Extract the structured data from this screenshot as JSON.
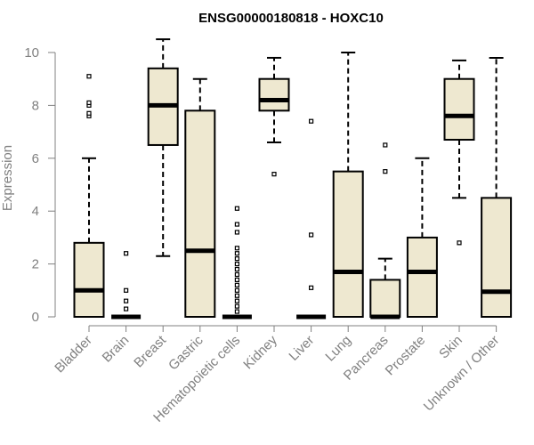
{
  "chart_data": {
    "type": "boxplot",
    "title": "ENSG00000180818 - HOXC10",
    "xlabel": "",
    "ylabel": "Expression",
    "ylim": [
      0,
      10.5
    ],
    "yticks": [
      0,
      2,
      4,
      6,
      8,
      10
    ],
    "grid": false,
    "legend": "none",
    "colors": {
      "box_fill": "#EEE8D0",
      "box_stroke": "#000000",
      "axis": "#808080"
    },
    "categories": [
      "Bladder",
      "Brain",
      "Breast",
      "Gastric",
      "Hematopoietic cells",
      "Kidney",
      "Liver",
      "Lung",
      "Pancreas",
      "Prostate",
      "Skin",
      "Unknown / Other"
    ],
    "boxes": [
      {
        "category": "Bladder",
        "whisker_low": 0,
        "q1": 0,
        "median": 1.0,
        "q3": 2.8,
        "whisker_high": 6.0,
        "outliers": [
          7.6,
          7.7,
          8.0,
          8.1,
          9.1
        ]
      },
      {
        "category": "Brain",
        "whisker_low": 0,
        "q1": 0,
        "median": 0,
        "q3": 0,
        "whisker_high": 0,
        "outliers": [
          0.3,
          0.6,
          1.0,
          2.4
        ]
      },
      {
        "category": "Breast",
        "whisker_low": 2.3,
        "q1": 6.5,
        "median": 8.0,
        "q3": 9.4,
        "whisker_high": 10.5,
        "outliers": []
      },
      {
        "category": "Gastric",
        "whisker_low": 0,
        "q1": 0,
        "median": 2.5,
        "q3": 7.8,
        "whisker_high": 9.0,
        "outliers": []
      },
      {
        "category": "Hematopoietic cells",
        "whisker_low": 0,
        "q1": 0,
        "median": 0,
        "q3": 0,
        "whisker_high": 0,
        "outliers": [
          0.2,
          0.4,
          0.6,
          0.8,
          1.0,
          1.2,
          1.4,
          1.6,
          1.8,
          2.0,
          2.2,
          2.4,
          2.6,
          3.2,
          3.5,
          4.1
        ]
      },
      {
        "category": "Kidney",
        "whisker_low": 6.6,
        "q1": 7.8,
        "median": 8.2,
        "q3": 9.0,
        "whisker_high": 9.8,
        "outliers": [
          5.4
        ]
      },
      {
        "category": "Liver",
        "whisker_low": 0,
        "q1": 0,
        "median": 0,
        "q3": 0,
        "whisker_high": 0,
        "outliers": [
          1.1,
          3.1,
          7.4
        ]
      },
      {
        "category": "Lung",
        "whisker_low": 0,
        "q1": 0,
        "median": 1.7,
        "q3": 5.5,
        "whisker_high": 10.0,
        "outliers": []
      },
      {
        "category": "Pancreas",
        "whisker_low": 0,
        "q1": 0,
        "median": 0,
        "q3": 1.4,
        "whisker_high": 2.2,
        "outliers": [
          5.5,
          6.5
        ]
      },
      {
        "category": "Prostate",
        "whisker_low": 0,
        "q1": 0,
        "median": 1.7,
        "q3": 3.0,
        "whisker_high": 6.0,
        "outliers": []
      },
      {
        "category": "Skin",
        "whisker_low": 4.5,
        "q1": 6.7,
        "median": 7.6,
        "q3": 9.0,
        "whisker_high": 9.7,
        "outliers": [
          2.8
        ]
      },
      {
        "category": "Unknown / Other",
        "whisker_low": 0,
        "q1": 0,
        "median": 0.95,
        "q3": 4.5,
        "whisker_high": 9.8,
        "outliers": []
      }
    ]
  }
}
